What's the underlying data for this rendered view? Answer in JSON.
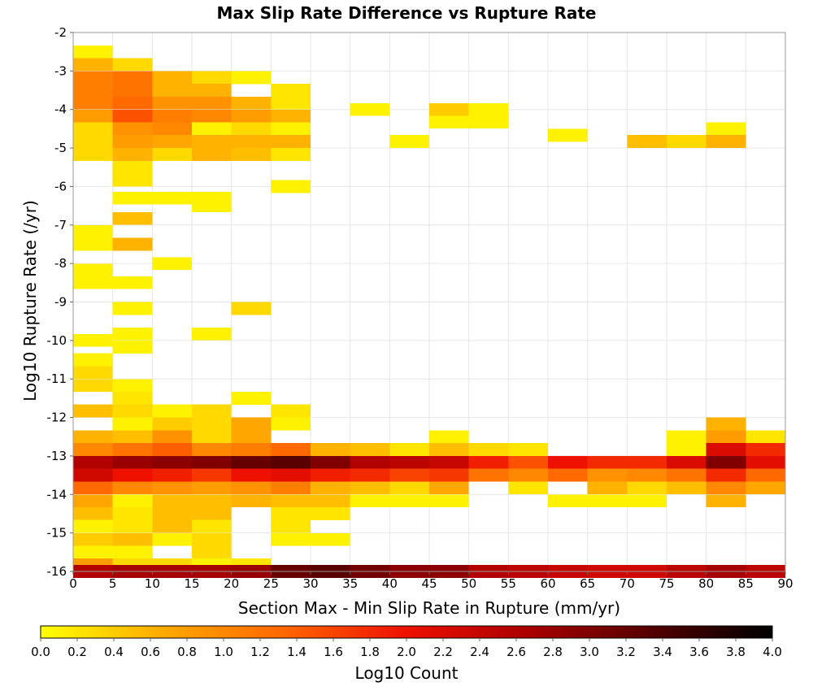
{
  "chart_data": {
    "type": "heatmap",
    "title": "Max Slip Rate Difference vs Rupture Rate",
    "xlabel": "Section Max - Min Slip Rate in Rupture (mm/yr)",
    "ylabel": "Log10 Rupture Rate (/yr)",
    "xlim": [
      0,
      90
    ],
    "ylim": [
      -16,
      -2
    ],
    "x_ticks": [
      0,
      5,
      10,
      15,
      20,
      25,
      30,
      35,
      40,
      45,
      50,
      55,
      60,
      65,
      70,
      75,
      80,
      85,
      90
    ],
    "y_ticks": [
      -2,
      -3,
      -4,
      -5,
      -6,
      -7,
      -8,
      -9,
      -10,
      -11,
      -12,
      -13,
      -14,
      -15,
      -16
    ],
    "x_bin_width": 5,
    "y_bin_height": 0.333,
    "grid": true,
    "colorbar": {
      "label": "Log10 Count",
      "min": 0.0,
      "max": 4.0,
      "ticks": [
        "0.0",
        "0.2",
        "0.4",
        "0.6",
        "0.8",
        "1.0",
        "1.2",
        "1.4",
        "1.6",
        "1.8",
        "2.0",
        "2.2",
        "2.4",
        "2.6",
        "2.8",
        "3.0",
        "3.2",
        "3.4",
        "3.6",
        "3.8",
        "4.0"
      ],
      "colors": [
        "#ffff00",
        "#ffaa00",
        "#ff6600",
        "#ee1100",
        "#aa0000",
        "#550000",
        "#000000"
      ]
    },
    "cells_columns": [
      "x_start",
      "y_center",
      "log10_count"
    ],
    "cells": [
      [
        0,
        -2.5,
        0.1
      ],
      [
        0,
        -2.83,
        0.6
      ],
      [
        0,
        -3.17,
        1.1
      ],
      [
        0,
        -3.5,
        1.1
      ],
      [
        0,
        -3.83,
        1.1
      ],
      [
        0,
        -4.17,
        0.8
      ],
      [
        0,
        -4.5,
        0.3
      ],
      [
        0,
        -4.83,
        0.3
      ],
      [
        0,
        -5.17,
        0.3
      ],
      [
        0,
        -7.17,
        0.1
      ],
      [
        0,
        -7.5,
        0.1
      ],
      [
        0,
        -8.17,
        0.1
      ],
      [
        0,
        -8.5,
        0.1
      ],
      [
        0,
        -10.0,
        0.1
      ],
      [
        0,
        -10.5,
        0.1
      ],
      [
        0,
        -10.83,
        0.3
      ],
      [
        0,
        -11.17,
        0.3
      ],
      [
        0,
        -11.83,
        0.5
      ],
      [
        0,
        -12.5,
        0.6
      ],
      [
        0,
        -12.83,
        1.0
      ],
      [
        0,
        -13.17,
        2.6
      ],
      [
        0,
        -13.5,
        2.3
      ],
      [
        0,
        -13.83,
        1.3
      ],
      [
        0,
        -14.17,
        0.7
      ],
      [
        0,
        -14.5,
        0.5
      ],
      [
        0,
        -14.83,
        0.1
      ],
      [
        0,
        -15.17,
        0.4
      ],
      [
        0,
        -15.5,
        0.1
      ],
      [
        0,
        -15.83,
        0.8
      ],
      [
        0,
        -16.0,
        2.6
      ],
      [
        5,
        -2.83,
        0.3
      ],
      [
        5,
        -3.17,
        1.2
      ],
      [
        5,
        -3.5,
        1.2
      ],
      [
        5,
        -3.83,
        1.3
      ],
      [
        5,
        -4.17,
        1.5
      ],
      [
        5,
        -4.5,
        0.9
      ],
      [
        5,
        -4.83,
        0.8
      ],
      [
        5,
        -5.17,
        0.6
      ],
      [
        5,
        -5.5,
        0.2
      ],
      [
        5,
        -5.83,
        0.2
      ],
      [
        5,
        -6.3,
        0.1
      ],
      [
        5,
        -6.83,
        0.5
      ],
      [
        5,
        -7.5,
        0.6
      ],
      [
        5,
        -8.5,
        0.1
      ],
      [
        5,
        -9.17,
        0.1
      ],
      [
        5,
        -9.83,
        0.1
      ],
      [
        5,
        -10.17,
        0.1
      ],
      [
        5,
        -11.17,
        0.1
      ],
      [
        5,
        -11.5,
        0.2
      ],
      [
        5,
        -11.83,
        0.3
      ],
      [
        5,
        -12.17,
        0.1
      ],
      [
        5,
        -12.5,
        0.5
      ],
      [
        5,
        -12.83,
        1.2
      ],
      [
        5,
        -13.17,
        2.8
      ],
      [
        5,
        -13.5,
        2.0
      ],
      [
        5,
        -13.83,
        1.0
      ],
      [
        5,
        -14.17,
        0.1
      ],
      [
        5,
        -14.5,
        0.2
      ],
      [
        5,
        -14.83,
        0.2
      ],
      [
        5,
        -15.17,
        0.5
      ],
      [
        5,
        -15.5,
        0.1
      ],
      [
        5,
        -15.83,
        0.3
      ],
      [
        5,
        -16.0,
        2.7
      ],
      [
        10,
        -3.17,
        0.6
      ],
      [
        10,
        -3.5,
        0.6
      ],
      [
        10,
        -3.83,
        0.9
      ],
      [
        10,
        -4.17,
        1.1
      ],
      [
        10,
        -4.5,
        1.0
      ],
      [
        10,
        -4.83,
        0.7
      ],
      [
        10,
        -5.17,
        0.3
      ],
      [
        10,
        -6.3,
        0.1
      ],
      [
        10,
        -8.0,
        0.1
      ],
      [
        10,
        -11.83,
        0.1
      ],
      [
        10,
        -12.17,
        0.4
      ],
      [
        10,
        -12.5,
        0.9
      ],
      [
        10,
        -12.83,
        1.4
      ],
      [
        10,
        -13.17,
        2.9
      ],
      [
        10,
        -13.5,
        1.9
      ],
      [
        10,
        -13.83,
        0.9
      ],
      [
        10,
        -14.17,
        0.5
      ],
      [
        10,
        -14.5,
        0.5
      ],
      [
        10,
        -14.83,
        0.5
      ],
      [
        10,
        -15.17,
        0.1
      ],
      [
        10,
        -15.83,
        0.3
      ],
      [
        10,
        -16.0,
        2.7
      ],
      [
        15,
        -3.17,
        0.3
      ],
      [
        15,
        -3.5,
        0.6
      ],
      [
        15,
        -3.83,
        0.9
      ],
      [
        15,
        -4.17,
        1.0
      ],
      [
        15,
        -4.5,
        0.1
      ],
      [
        15,
        -4.83,
        0.6
      ],
      [
        15,
        -5.17,
        0.6
      ],
      [
        15,
        -6.3,
        0.1
      ],
      [
        15,
        -6.5,
        0.1
      ],
      [
        15,
        -9.83,
        0.1
      ],
      [
        15,
        -11.83,
        0.3
      ],
      [
        15,
        -12.17,
        0.3
      ],
      [
        15,
        -12.5,
        0.3
      ],
      [
        15,
        -12.83,
        1.0
      ],
      [
        15,
        -13.17,
        3.0
      ],
      [
        15,
        -13.5,
        1.7
      ],
      [
        15,
        -13.83,
        0.8
      ],
      [
        15,
        -14.17,
        0.5
      ],
      [
        15,
        -14.5,
        0.5
      ],
      [
        15,
        -14.83,
        0.2
      ],
      [
        15,
        -15.17,
        0.3
      ],
      [
        15,
        -15.5,
        0.3
      ],
      [
        15,
        -15.83,
        0.1
      ],
      [
        15,
        -16.0,
        2.7
      ],
      [
        20,
        -3.17,
        0.1
      ],
      [
        20,
        -3.83,
        0.6
      ],
      [
        20,
        -4.17,
        0.8
      ],
      [
        20,
        -4.5,
        0.3
      ],
      [
        20,
        -4.83,
        0.6
      ],
      [
        20,
        -5.17,
        0.5
      ],
      [
        20,
        -9.17,
        0.3
      ],
      [
        20,
        -11.5,
        0.1
      ],
      [
        20,
        -12.17,
        0.7
      ],
      [
        20,
        -12.5,
        0.7
      ],
      [
        20,
        -12.83,
        1.1
      ],
      [
        20,
        -13.17,
        3.2
      ],
      [
        20,
        -13.5,
        2.0
      ],
      [
        20,
        -13.83,
        0.9
      ],
      [
        20,
        -14.17,
        0.6
      ],
      [
        20,
        -15.83,
        0.2
      ],
      [
        20,
        -16.0,
        2.8
      ],
      [
        25,
        -3.5,
        0.2
      ],
      [
        25,
        -3.83,
        0.2
      ],
      [
        25,
        -4.17,
        0.6
      ],
      [
        25,
        -4.5,
        0.1
      ],
      [
        25,
        -4.83,
        0.6
      ],
      [
        25,
        -5.17,
        0.2
      ],
      [
        25,
        -6.0,
        0.1
      ],
      [
        25,
        -11.83,
        0.2
      ],
      [
        25,
        -12.17,
        0.1
      ],
      [
        25,
        -12.83,
        1.3
      ],
      [
        25,
        -13.17,
        3.3
      ],
      [
        25,
        -13.5,
        2.1
      ],
      [
        25,
        -13.83,
        1.1
      ],
      [
        25,
        -14.17,
        0.5
      ],
      [
        25,
        -14.5,
        0.2
      ],
      [
        25,
        -14.83,
        0.2
      ],
      [
        25,
        -15.17,
        0.1
      ],
      [
        25,
        -16.0,
        3.2
      ],
      [
        30,
        -12.83,
        0.6
      ],
      [
        30,
        -13.17,
        3.0
      ],
      [
        30,
        -13.5,
        1.9
      ],
      [
        30,
        -13.83,
        0.6
      ],
      [
        30,
        -14.17,
        0.5
      ],
      [
        30,
        -14.5,
        0.2
      ],
      [
        30,
        -15.17,
        0.1
      ],
      [
        30,
        -16.0,
        3.3
      ],
      [
        35,
        -4.0,
        0.1
      ],
      [
        35,
        -12.83,
        0.5
      ],
      [
        35,
        -13.17,
        2.6
      ],
      [
        35,
        -13.5,
        1.8
      ],
      [
        35,
        -13.83,
        0.5
      ],
      [
        35,
        -14.17,
        0.1
      ],
      [
        35,
        -16.0,
        3.1
      ],
      [
        40,
        -4.83,
        0.1
      ],
      [
        40,
        -12.83,
        0.2
      ],
      [
        40,
        -13.17,
        2.5
      ],
      [
        40,
        -13.5,
        1.6
      ],
      [
        40,
        -13.83,
        0.3
      ],
      [
        40,
        -14.17,
        0.1
      ],
      [
        40,
        -16.0,
        2.9
      ],
      [
        45,
        -4.0,
        0.4
      ],
      [
        45,
        -4.33,
        0.1
      ],
      [
        45,
        -12.5,
        0.1
      ],
      [
        45,
        -12.83,
        0.5
      ],
      [
        45,
        -13.17,
        2.4
      ],
      [
        45,
        -13.5,
        1.7
      ],
      [
        45,
        -13.83,
        0.7
      ],
      [
        45,
        -14.17,
        0.1
      ],
      [
        45,
        -16.0,
        2.9
      ],
      [
        50,
        -4.0,
        0.1
      ],
      [
        50,
        -4.33,
        0.1
      ],
      [
        50,
        -12.83,
        0.3
      ],
      [
        50,
        -13.17,
        1.9
      ],
      [
        50,
        -13.5,
        1.2
      ],
      [
        50,
        -16.0,
        2.6
      ],
      [
        55,
        -12.83,
        0.2
      ],
      [
        55,
        -13.17,
        1.5
      ],
      [
        55,
        -13.5,
        1.0
      ],
      [
        55,
        -13.83,
        0.2
      ],
      [
        55,
        -16.0,
        2.5
      ],
      [
        60,
        -4.67,
        0.1
      ],
      [
        60,
        -13.17,
        2.0
      ],
      [
        60,
        -13.5,
        1.3
      ],
      [
        60,
        -14.17,
        0.1
      ],
      [
        60,
        -16.0,
        2.4
      ],
      [
        65,
        -13.17,
        1.8
      ],
      [
        65,
        -13.5,
        0.9
      ],
      [
        65,
        -13.83,
        0.6
      ],
      [
        65,
        -14.17,
        0.1
      ],
      [
        65,
        -16.0,
        2.3
      ],
      [
        70,
        -4.83,
        0.5
      ],
      [
        70,
        -13.17,
        1.8
      ],
      [
        70,
        -13.5,
        1.0
      ],
      [
        70,
        -13.83,
        0.3
      ],
      [
        70,
        -14.17,
        0.1
      ],
      [
        70,
        -16.0,
        2.3
      ],
      [
        75,
        -4.83,
        0.3
      ],
      [
        75,
        -12.5,
        0.1
      ],
      [
        75,
        -12.83,
        0.1
      ],
      [
        75,
        -13.17,
        2.2
      ],
      [
        75,
        -13.5,
        1.2
      ],
      [
        75,
        -13.83,
        0.5
      ],
      [
        75,
        -16.0,
        2.5
      ],
      [
        80,
        -4.5,
        0.1
      ],
      [
        80,
        -4.83,
        0.6
      ],
      [
        80,
        -12.17,
        0.6
      ],
      [
        80,
        -12.5,
        0.8
      ],
      [
        80,
        -12.83,
        2.2
      ],
      [
        80,
        -13.17,
        3.0
      ],
      [
        80,
        -13.5,
        1.8
      ],
      [
        80,
        -13.83,
        1.0
      ],
      [
        80,
        -14.17,
        0.6
      ],
      [
        80,
        -16.0,
        2.7
      ],
      [
        85,
        -12.5,
        0.2
      ],
      [
        85,
        -12.83,
        1.8
      ],
      [
        85,
        -13.17,
        2.1
      ],
      [
        85,
        -13.5,
        1.3
      ],
      [
        85,
        -13.83,
        0.7
      ],
      [
        85,
        -16.0,
        2.5
      ]
    ]
  }
}
